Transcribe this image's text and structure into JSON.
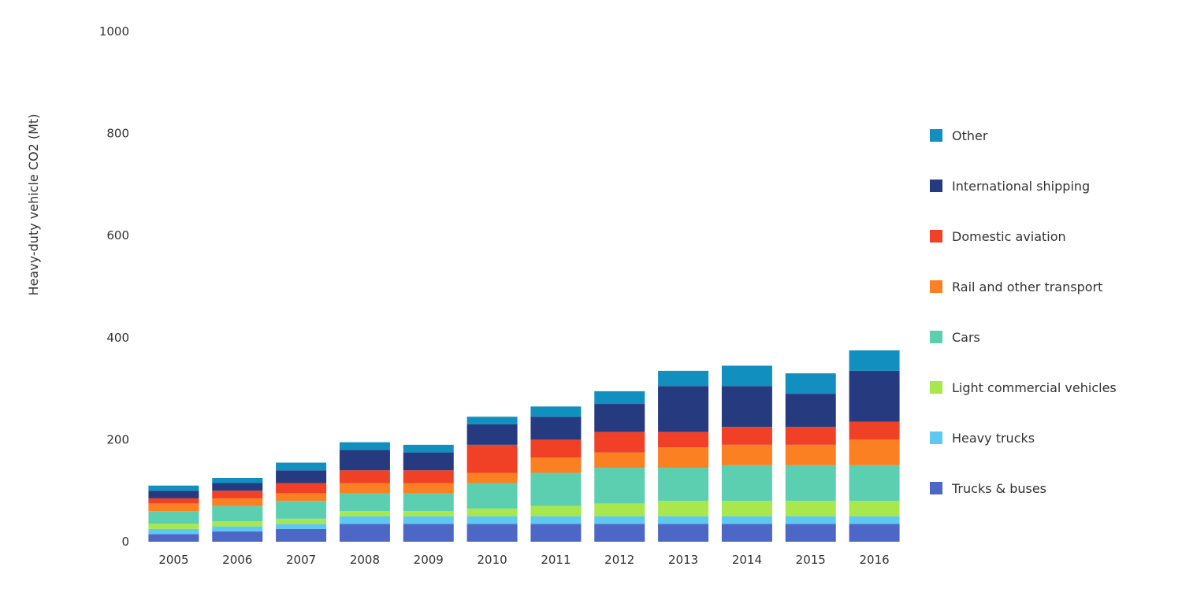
{
  "chart_data": {
    "type": "bar",
    "stacked": true,
    "ylabel": "Heavy-duty vehicle CO2 (Mt)",
    "categories": [
      "2005",
      "2006",
      "2007",
      "2008",
      "2009",
      "2010",
      "2011",
      "2012",
      "2013",
      "2014",
      "2015",
      "2016"
    ],
    "ylim": [
      0,
      1000
    ],
    "y_ticks": [
      0,
      200,
      400,
      600,
      800,
      1000
    ],
    "grid": false,
    "legend_position": "right",
    "series": [
      {
        "name": "Trucks & buses",
        "values": [
          15,
          20,
          25,
          35,
          35,
          35,
          35,
          35,
          35,
          35,
          35,
          35
        ]
      },
      {
        "name": "Heavy trucks",
        "values": [
          10,
          10,
          10,
          15,
          15,
          15,
          15,
          15,
          15,
          15,
          15,
          15
        ]
      },
      {
        "name": "Light commercial vehicles",
        "values": [
          10,
          10,
          10,
          10,
          10,
          15,
          20,
          25,
          30,
          30,
          30,
          30
        ]
      },
      {
        "name": "Cars",
        "values": [
          25,
          30,
          35,
          35,
          35,
          50,
          65,
          70,
          65,
          70,
          70,
          70
        ]
      },
      {
        "name": "Rail and other transport",
        "values": [
          15,
          15,
          15,
          20,
          20,
          20,
          30,
          30,
          40,
          40,
          40,
          50
        ]
      },
      {
        "name": "Domestic aviation",
        "values": [
          10,
          15,
          20,
          25,
          25,
          55,
          35,
          40,
          30,
          35,
          35,
          35
        ]
      },
      {
        "name": "International shipping",
        "values": [
          15,
          15,
          25,
          40,
          35,
          40,
          45,
          55,
          90,
          80,
          65,
          100
        ]
      },
      {
        "name": "Other",
        "values": [
          10,
          10,
          15,
          15,
          15,
          15,
          20,
          25,
          30,
          40,
          40,
          40
        ]
      }
    ],
    "series_colors": [
      "#4c67c6",
      "#5dc8f0",
      "#a8e84d",
      "#5ccfb0",
      "#fb8022",
      "#f04026",
      "#263a80",
      "#1190c0"
    ]
  },
  "legend": {
    "colors": [
      "#1190c0",
      "#263a80",
      "#f04026",
      "#fb8022",
      "#5ccfb0",
      "#a8e84d",
      "#5dc8f0",
      "#4c67c6"
    ],
    "labels": [
      "Other",
      "International shipping",
      "Domestic aviation",
      "Rail and other transport",
      "Cars",
      "Light commercial vehicles",
      "Heavy trucks",
      "Trucks & buses"
    ]
  }
}
